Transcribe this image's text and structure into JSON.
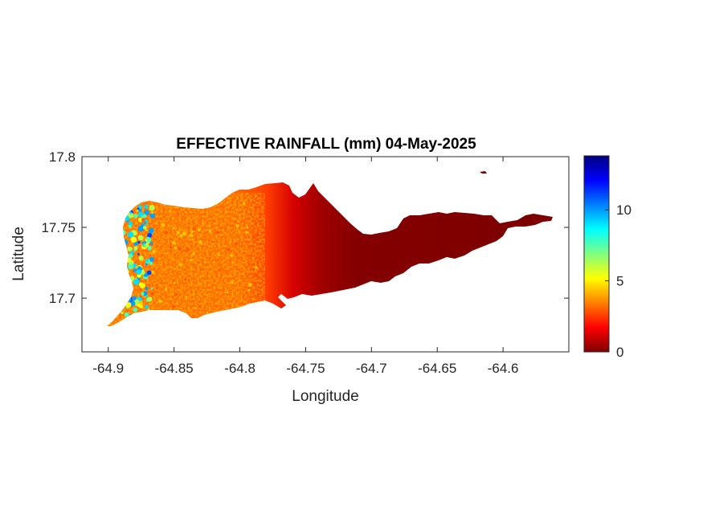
{
  "chart_data": {
    "type": "heatmap",
    "title": "EFFECTIVE RAINFALL (mm) 04-May-2025",
    "xlabel": "Longitude",
    "ylabel": "Latitude",
    "xlim": [
      -64.92,
      -64.55
    ],
    "ylim": [
      17.662,
      17.8
    ],
    "x_ticks": [
      -64.9,
      -64.85,
      -64.8,
      -64.75,
      -64.7,
      -64.65,
      -64.6
    ],
    "x_tick_labels": [
      "-64.9",
      "-64.85",
      "-64.8",
      "-64.75",
      "-64.7",
      "-64.65",
      "-64.6"
    ],
    "y_ticks": [
      17.7,
      17.75,
      17.8
    ],
    "y_tick_labels": [
      "17.7",
      "17.75",
      "17.8"
    ],
    "colorbar": {
      "colormap": "jet",
      "range": [
        0,
        13.8
      ],
      "ticks": [
        0,
        5,
        10
      ],
      "tick_labels": [
        "0",
        "5",
        "10"
      ]
    },
    "grid": false,
    "description_of_field": {
      "west_values_approx": [
        2,
        6
      ],
      "west_coast_peaks_approx": [
        8,
        13.8
      ],
      "east_values_approx": [
        0,
        0.5
      ]
    }
  },
  "colors": {
    "dark_red": "#800000",
    "orange": "#ff7a00",
    "axis": "#262626"
  }
}
